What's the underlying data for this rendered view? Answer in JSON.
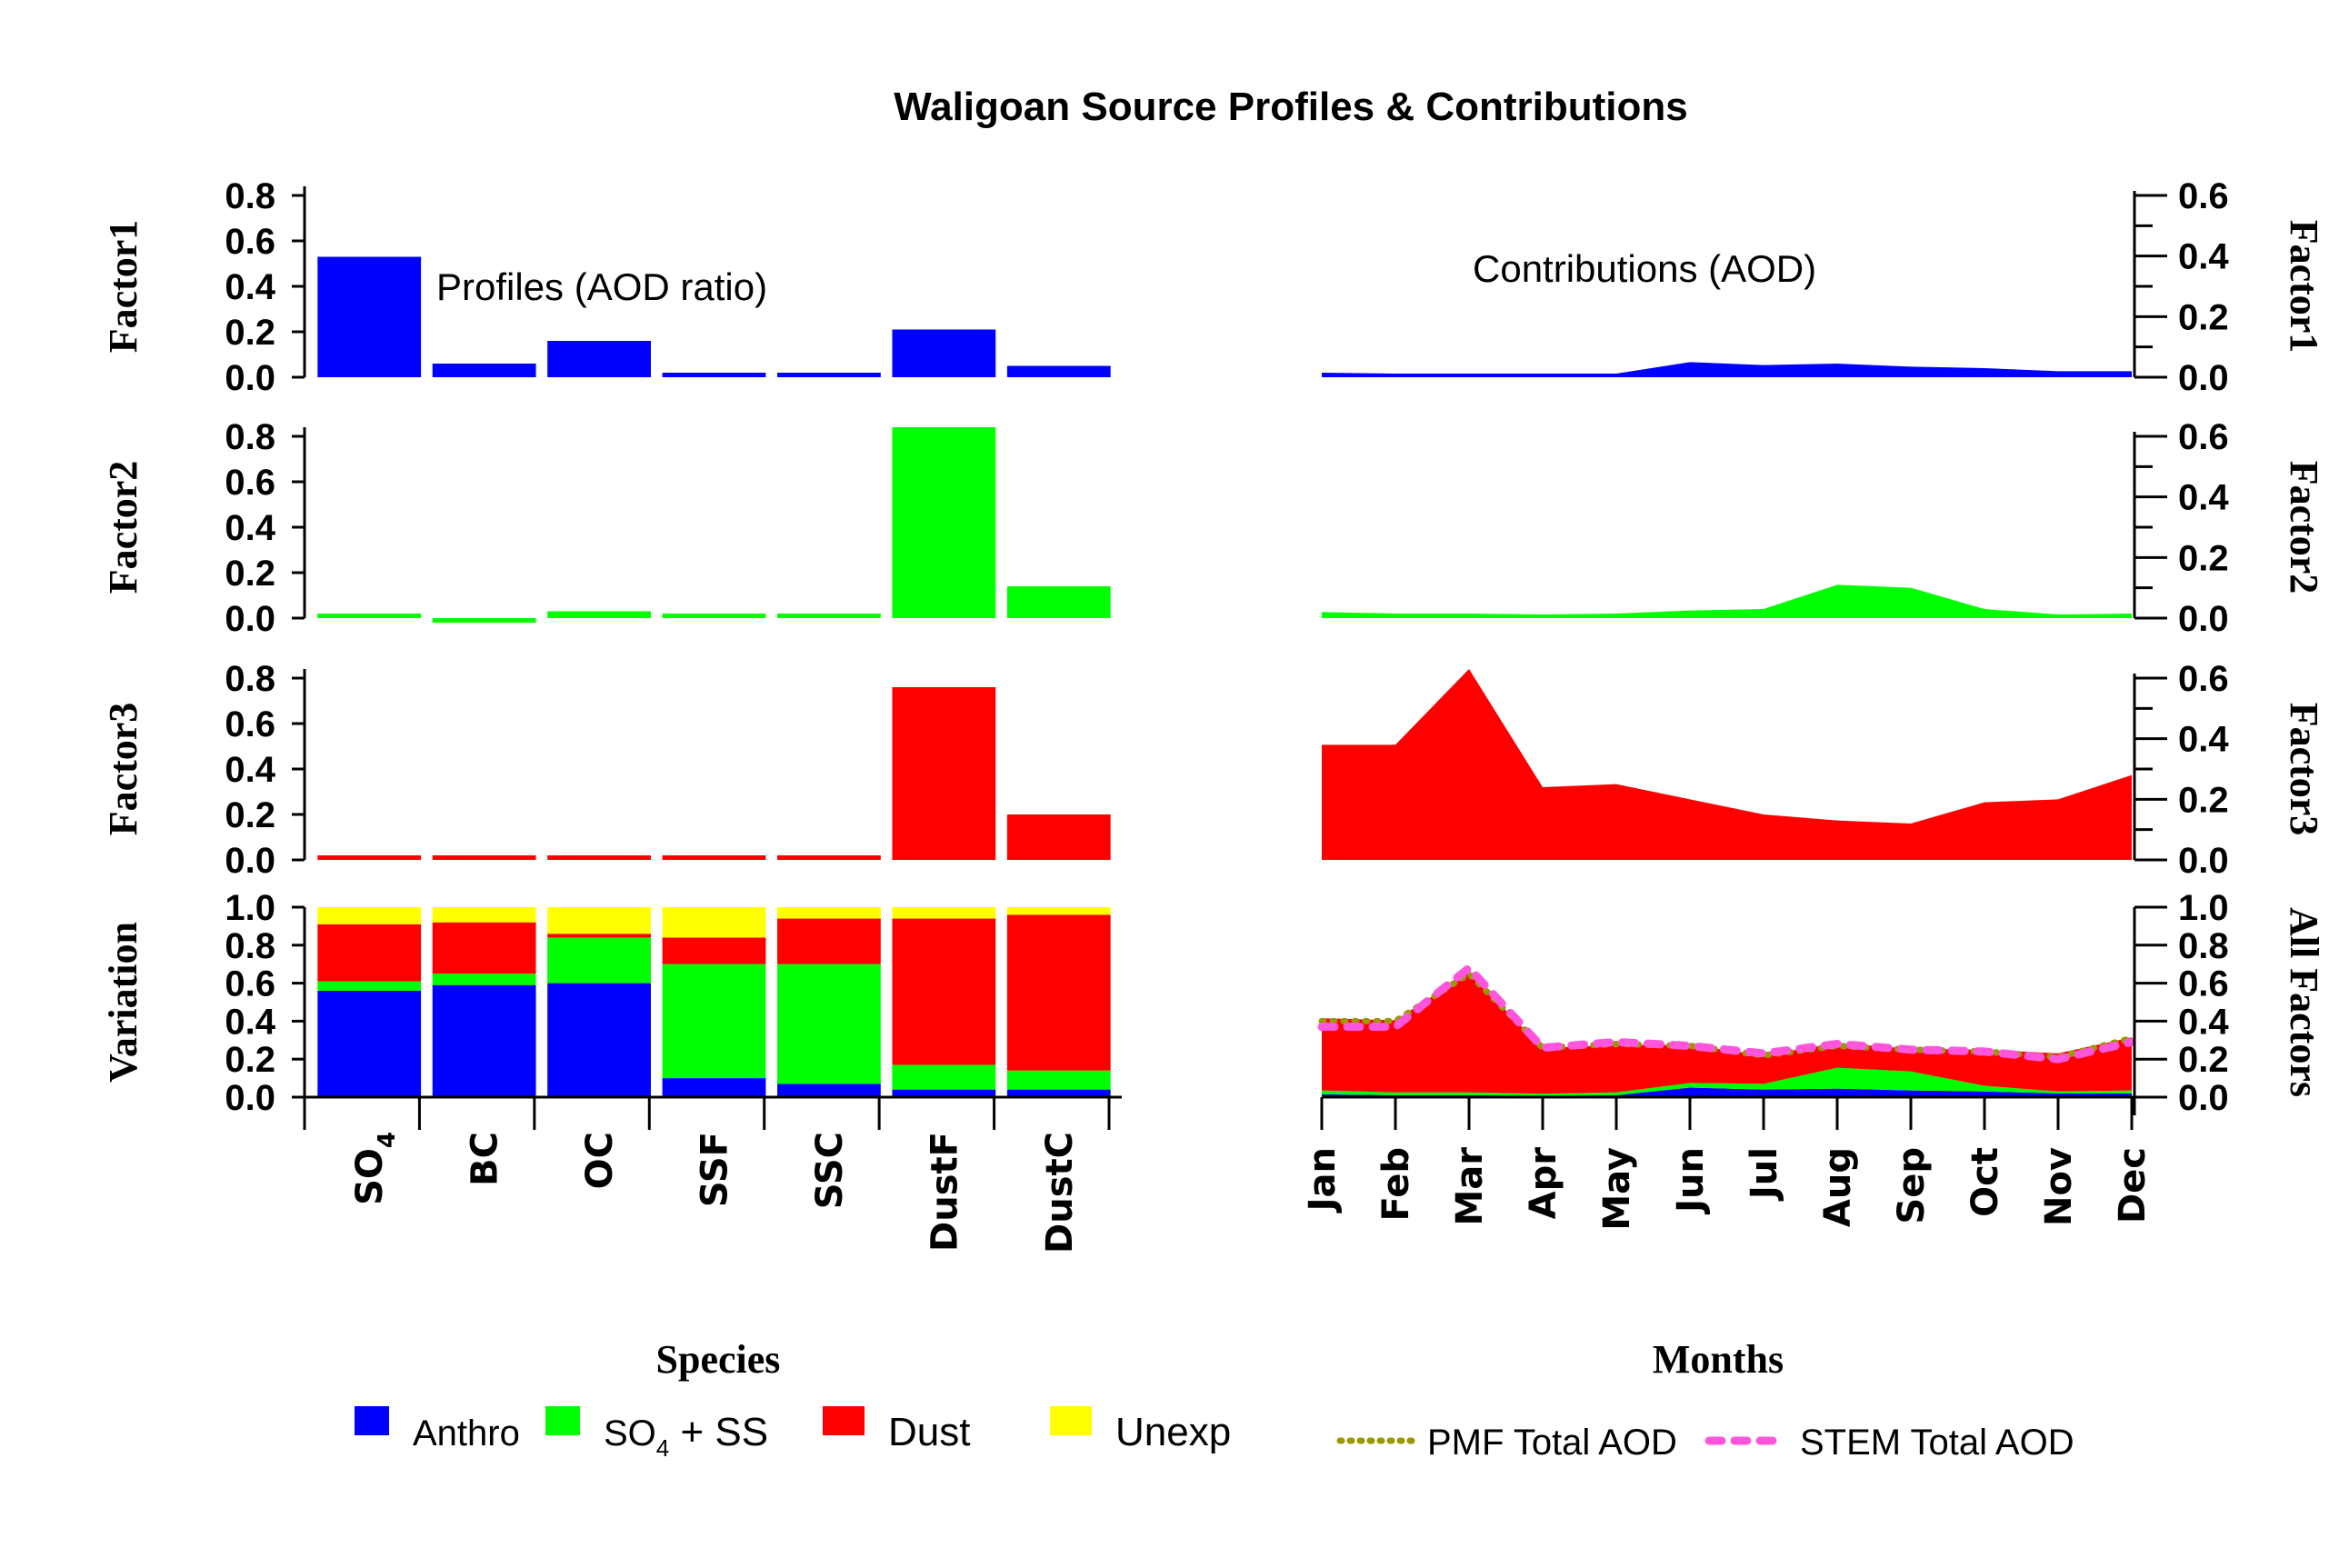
{
  "chart_data": {
    "type": "bar",
    "title": "Waligoan Source Profiles & Contributions",
    "colors": {
      "anthro": "#0000ff",
      "so4_ss": "#00ff00",
      "dust": "#ff0000",
      "unexp": "#ffff00",
      "pmf_line": "#999900",
      "stem_line": "#ff55dd"
    },
    "profiles": {
      "annotation": "Profiles (AOD ratio)",
      "categories": [
        "SO4",
        "BC",
        "OC",
        "SSF",
        "SSC",
        "DustF",
        "DustC"
      ],
      "category_labels": [
        {
          "main": "SO",
          "sub": "4"
        },
        {
          "main": "BC",
          "sub": ""
        },
        {
          "main": "OC",
          "sub": ""
        },
        {
          "main": "SSF",
          "sub": ""
        },
        {
          "main": "SSC",
          "sub": ""
        },
        {
          "main": "DustF",
          "sub": ""
        },
        {
          "main": "DustC",
          "sub": ""
        }
      ],
      "xlabel": "Species",
      "ylim": [
        0,
        0.85
      ],
      "yticks": [
        "0.0",
        "0.2",
        "0.4",
        "0.6",
        "0.8"
      ],
      "panels": [
        {
          "name": "Factor1",
          "color_key": "anthro",
          "values": [
            0.53,
            0.06,
            0.16,
            0.01,
            0.01,
            0.21,
            0.05
          ]
        },
        {
          "name": "Factor2",
          "color_key": "so4_ss",
          "values": [
            0.02,
            -0.01,
            0.03,
            0.01,
            0.01,
            0.84,
            0.14
          ]
        },
        {
          "name": "Factor3",
          "color_key": "dust",
          "values": [
            0.01,
            0.01,
            0.01,
            0.01,
            0.01,
            0.76,
            0.2
          ]
        }
      ],
      "variation": {
        "name": "Variation",
        "ylim": [
          0,
          1.0
        ],
        "yticks": [
          "0.0",
          "0.2",
          "0.4",
          "0.6",
          "0.8",
          "1.0"
        ],
        "series": [
          {
            "name": "Anthro",
            "color_key": "anthro",
            "values": [
              0.56,
              0.59,
              0.6,
              0.1,
              0.07,
              0.04,
              0.04
            ]
          },
          {
            "name": "SO4 + SS",
            "color_key": "so4_ss",
            "values": [
              0.05,
              0.06,
              0.24,
              0.6,
              0.63,
              0.13,
              0.1
            ]
          },
          {
            "name": "Dust",
            "color_key": "dust",
            "values": [
              0.3,
              0.27,
              0.02,
              0.14,
              0.24,
              0.77,
              0.82
            ]
          },
          {
            "name": "Unexp",
            "color_key": "unexp",
            "values": [
              0.09,
              0.08,
              0.14,
              0.16,
              0.06,
              0.06,
              0.04
            ]
          }
        ]
      }
    },
    "contributions": {
      "annotation": "Contributions (AOD)",
      "type": "area",
      "categories": [
        "Jan",
        "Feb",
        "Mar",
        "Apr",
        "May",
        "Jun",
        "Jul",
        "Aug",
        "Sep",
        "Oct",
        "Nov",
        "Dec"
      ],
      "xlabel": "Months",
      "ylim": [
        0,
        0.6
      ],
      "yticks": [
        "0.0",
        "0.2",
        "0.4",
        "0.6"
      ],
      "panels": [
        {
          "name": "Factor1",
          "color_key": "anthro",
          "values": [
            0.015,
            0.01,
            0.01,
            0.005,
            0.01,
            0.05,
            0.04,
            0.045,
            0.035,
            0.03,
            0.02,
            0.02
          ]
        },
        {
          "name": "Factor2",
          "color_key": "so4_ss",
          "values": [
            0.02,
            0.015,
            0.015,
            0.01,
            0.015,
            0.025,
            0.03,
            0.11,
            0.1,
            0.03,
            0.01,
            0.015
          ]
        },
        {
          "name": "Factor3",
          "color_key": "dust",
          "values": [
            0.38,
            0.38,
            0.63,
            0.24,
            0.25,
            0.2,
            0.15,
            0.13,
            0.12,
            0.19,
            0.2,
            0.28
          ]
        }
      ],
      "all_factors": {
        "name": "All Factors",
        "ylim": [
          0,
          1.0
        ],
        "yticks": [
          "0.0",
          "0.2",
          "0.4",
          "0.6",
          "0.8",
          "1.0"
        ],
        "pmf_total": [
          0.4,
          0.4,
          0.65,
          0.26,
          0.28,
          0.27,
          0.22,
          0.27,
          0.25,
          0.24,
          0.21,
          0.31
        ],
        "stem_total": [
          0.37,
          0.37,
          0.68,
          0.26,
          0.29,
          0.27,
          0.23,
          0.28,
          0.25,
          0.24,
          0.2,
          0.29
        ]
      }
    },
    "legend_left": [
      {
        "label": "Anthro",
        "color_key": "anthro"
      },
      {
        "label_main": "SO",
        "label_sub": "4",
        "label_rest": " + SS",
        "color_key": "so4_ss"
      },
      {
        "label": "Dust",
        "color_key": "dust"
      },
      {
        "label": "Unexp",
        "color_key": "unexp"
      }
    ],
    "legend_right": [
      {
        "label": "PMF Total AOD",
        "style": "dotted",
        "color_key": "pmf_line"
      },
      {
        "label": "STEM Total AOD",
        "style": "dashed",
        "color_key": "stem_line"
      }
    ]
  }
}
